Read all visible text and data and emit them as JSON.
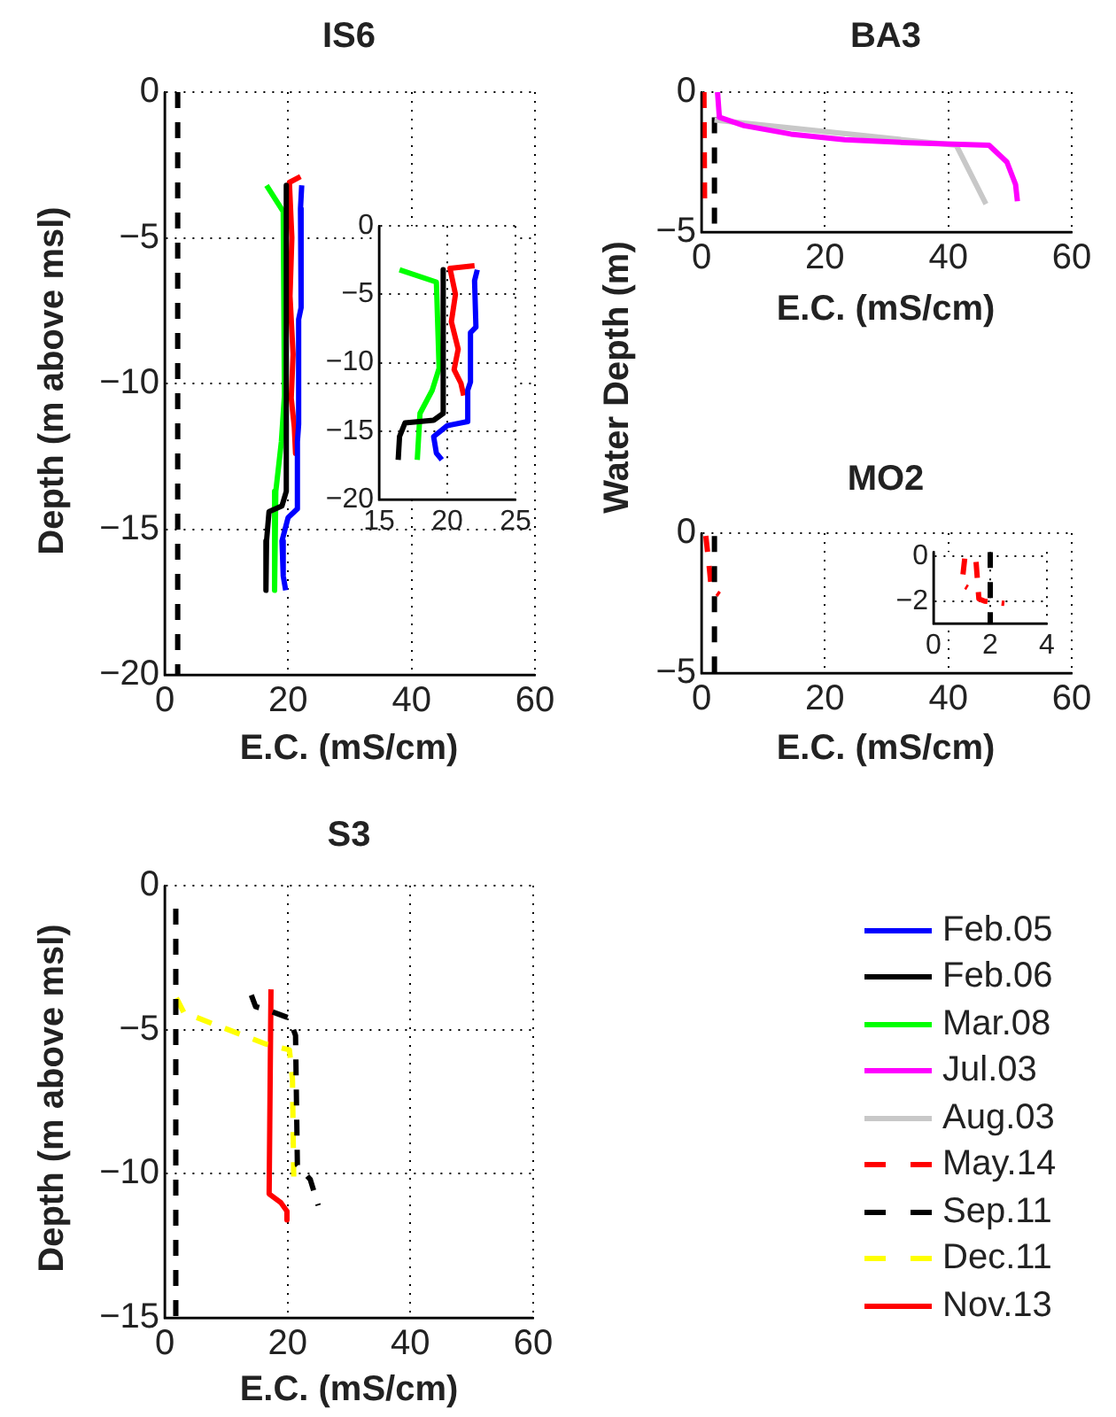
{
  "chart_data": [
    {
      "type": "line",
      "title": "IS6",
      "xlabel": "E.C. (mS/cm)",
      "ylabel": "Depth (m above msl)",
      "xlim": [
        0,
        60
      ],
      "xticks": [
        0,
        20,
        40,
        60
      ],
      "ylim": [
        -20,
        0
      ],
      "yticks": [
        -20,
        -15,
        -10,
        -5,
        0
      ],
      "grid": true,
      "marker": "none",
      "legend": "right",
      "series": [
        {
          "name": "Feb.05",
          "color": "#0000ff",
          "line_style": "solid",
          "x": [
            22.2,
            22.0,
            22.1,
            21.7,
            21.7,
            21.5,
            21.5,
            20.0,
            19.0,
            19.2,
            19.6
          ],
          "values": [
            -3.2,
            -4,
            -7.4,
            -7.8,
            -11.4,
            -12,
            -14.3,
            -14.6,
            -15.4,
            -16.6,
            -17.1
          ]
        },
        {
          "name": "Feb.06",
          "color": "#000000",
          "line_style": "solid",
          "x": [
            19.7,
            19.7,
            19.0,
            16.9,
            16.5,
            16.4
          ],
          "values": [
            -3.2,
            -13.7,
            -14.2,
            -14.4,
            -15.4,
            -17.1
          ]
        },
        {
          "name": "Mar.08",
          "color": "#00ff00",
          "line_style": "solid",
          "x": [
            16.5,
            19.2,
            19.4,
            18.9,
            18.0,
            17.8
          ],
          "values": [
            -3.2,
            -4.1,
            -10.4,
            -12.0,
            -13.7,
            -17.1
          ]
        },
        {
          "color": "#ff0000",
          "line_style": "solid",
          "x": [
            22.0,
            20.2,
            20.6,
            20.3,
            20.8,
            20.5,
            21.0,
            21.2
          ],
          "values": [
            -2.9,
            -3.1,
            -5,
            -7,
            -9,
            -10.5,
            -11.5,
            -12.4
          ]
        },
        {
          "color": "#000000",
          "line_style": "dashed",
          "x": [
            2.1,
            2.1
          ],
          "values": [
            0,
            -20
          ]
        }
      ]
    },
    {
      "type": "line",
      "xlim": [
        15,
        25
      ],
      "xticks": [
        15,
        20,
        25
      ],
      "ylim": [
        -20,
        0
      ],
      "yticks": [
        -20,
        -15,
        -10,
        -5,
        0
      ],
      "grid": true,
      "marker": "none",
      "series": [
        {
          "color": "#0000ff",
          "line_style": "solid",
          "x": [
            22.2,
            22.0,
            22.1,
            21.7,
            21.7,
            21.5,
            21.5,
            20.0,
            19.0,
            19.2,
            19.6
          ],
          "values": [
            -3.2,
            -4,
            -7.4,
            -7.8,
            -11.4,
            -12,
            -14.3,
            -14.6,
            -15.4,
            -16.6,
            -17.1
          ]
        },
        {
          "color": "#000000",
          "line_style": "solid",
          "x": [
            19.7,
            19.7,
            19.0,
            16.9,
            16.5,
            16.4
          ],
          "values": [
            -3.2,
            -13.7,
            -14.2,
            -14.4,
            -15.4,
            -17.1
          ]
        },
        {
          "color": "#00ff00",
          "line_style": "solid",
          "x": [
            16.5,
            19.2,
            19.4,
            18.9,
            18.0,
            17.8
          ],
          "values": [
            -3.2,
            -4.1,
            -10.4,
            -12.0,
            -13.7,
            -17.1
          ]
        },
        {
          "color": "#ff0000",
          "line_style": "solid",
          "x": [
            22.0,
            20.2,
            20.6,
            20.3,
            20.8,
            20.5,
            21.0,
            21.2
          ],
          "values": [
            -2.9,
            -3.1,
            -5,
            -7,
            -9,
            -10.5,
            -11.5,
            -12.4
          ]
        }
      ]
    },
    {
      "type": "line",
      "title": "BA3",
      "xlabel": "E.C. (mS/cm)",
      "ylabel": "Water Depth (m)",
      "xlim": [
        0,
        60
      ],
      "xticks": [
        0,
        20,
        40,
        60
      ],
      "ylim": [
        -5,
        0
      ],
      "yticks": [
        -5,
        0
      ],
      "grid": true,
      "marker": "none",
      "legend": "right",
      "series": [
        {
          "name": "Jul.03",
          "color": "#ff00ff",
          "line_style": "solid",
          "x": [
            2.6,
            2.9,
            6.9,
            14.5,
            23.2,
            32.7,
            46.6,
            49.5,
            50.9,
            51.2
          ],
          "values": [
            0,
            -0.9,
            -1.2,
            -1.5,
            -1.7,
            -1.8,
            -1.9,
            -2.5,
            -3.3,
            -3.9
          ]
        },
        {
          "name": "Aug.03",
          "color": "#c8c8c8",
          "line_style": "solid",
          "x": [
            2.1,
            41.3,
            46.1
          ],
          "values": [
            -1.0,
            -1.9,
            -4.0
          ]
        },
        {
          "color": "#000000",
          "line_style": "dashed",
          "x": [
            2.1,
            2.1
          ],
          "values": [
            -0.9,
            -5
          ]
        },
        {
          "name": "May.14",
          "color": "#ff0000",
          "line_style": "dashed",
          "x": [
            0.4,
            0.5
          ],
          "values": [
            0,
            -3.9
          ]
        }
      ]
    },
    {
      "type": "line",
      "title": "MO2",
      "xlabel": "E.C. (mS/cm)",
      "xlim": [
        0,
        60
      ],
      "xticks": [
        0,
        20,
        40,
        60
      ],
      "ylim": [
        -5,
        0
      ],
      "yticks": [
        -5,
        0
      ],
      "grid": true,
      "marker": "none",
      "series": [
        {
          "color": "#000000",
          "line_style": "dashed",
          "x": [
            2.1,
            2.1
          ],
          "values": [
            -0.1,
            -5
          ]
        },
        {
          "color": "#ff0000",
          "line_style": "dashed",
          "x": [
            0.7,
            1.3,
            1.6,
            2.9
          ],
          "values": [
            -0.1,
            -1.3,
            -2.0,
            -2.2
          ]
        }
      ]
    },
    {
      "type": "line",
      "xlim": [
        0,
        4
      ],
      "xticks": [
        0,
        2,
        4
      ],
      "ylim": [
        -3,
        0.2
      ],
      "yticks": [
        -2,
        0
      ],
      "grid": true,
      "marker": "none",
      "series": [
        {
          "color": "#000000",
          "line_style": "dashed",
          "x": [
            2,
            2
          ],
          "values": [
            0.2,
            -3
          ]
        },
        {
          "color": "#ff0000",
          "line_style": "dashed",
          "x": [
            1.1,
            1.0,
            1.2,
            1.3,
            1.5,
            1.6,
            1.8,
            2.5
          ],
          "values": [
            -0.1,
            -1.25,
            -1.4,
            null,
            -0.25,
            -1.9,
            -2.0,
            -2.1
          ]
        }
      ]
    },
    {
      "type": "line",
      "title": "S3",
      "xlabel": "E.C. (mS/cm)",
      "ylabel": "Depth (m above msl)",
      "xlim": [
        0,
        60
      ],
      "xticks": [
        0,
        20,
        40,
        60
      ],
      "ylim": [
        -15,
        0
      ],
      "yticks": [
        -15,
        -10,
        -5,
        0
      ],
      "grid": true,
      "marker": "none",
      "legend": "right",
      "series": [
        {
          "name": "Sep.11",
          "color": "#000000",
          "line_style": "dashed",
          "x": [
            1.8,
            1.8,
            8,
            14.1,
            14.8,
            16.5,
            20.3,
            21.3,
            21.6,
            23.7,
            25.0
          ],
          "values": [
            -0.8,
            -15,
            null,
            -3.8,
            -4.2,
            -4.3,
            -4.6,
            -5.2,
            -9.7,
            -10.2,
            -11.1
          ]
        },
        {
          "name": "Dec.11",
          "color": "#ffff00",
          "line_style": "dashed",
          "x": [
            1.9,
            3.1,
            7.9,
            16.5,
            20.3,
            20.8,
            21.0
          ],
          "values": [
            -3.9,
            -4.4,
            -4.8,
            -5.5,
            -5.7,
            -6.7,
            -10.1
          ]
        },
        {
          "name": "Nov.13",
          "color": "#ff0000",
          "line_style": "solid",
          "x": [
            17.3,
            17.0,
            18.9,
            19.9,
            19.9
          ],
          "values": [
            -3.6,
            -10.7,
            -11.0,
            -11.3,
            -11.6
          ]
        }
      ]
    }
  ]
}
